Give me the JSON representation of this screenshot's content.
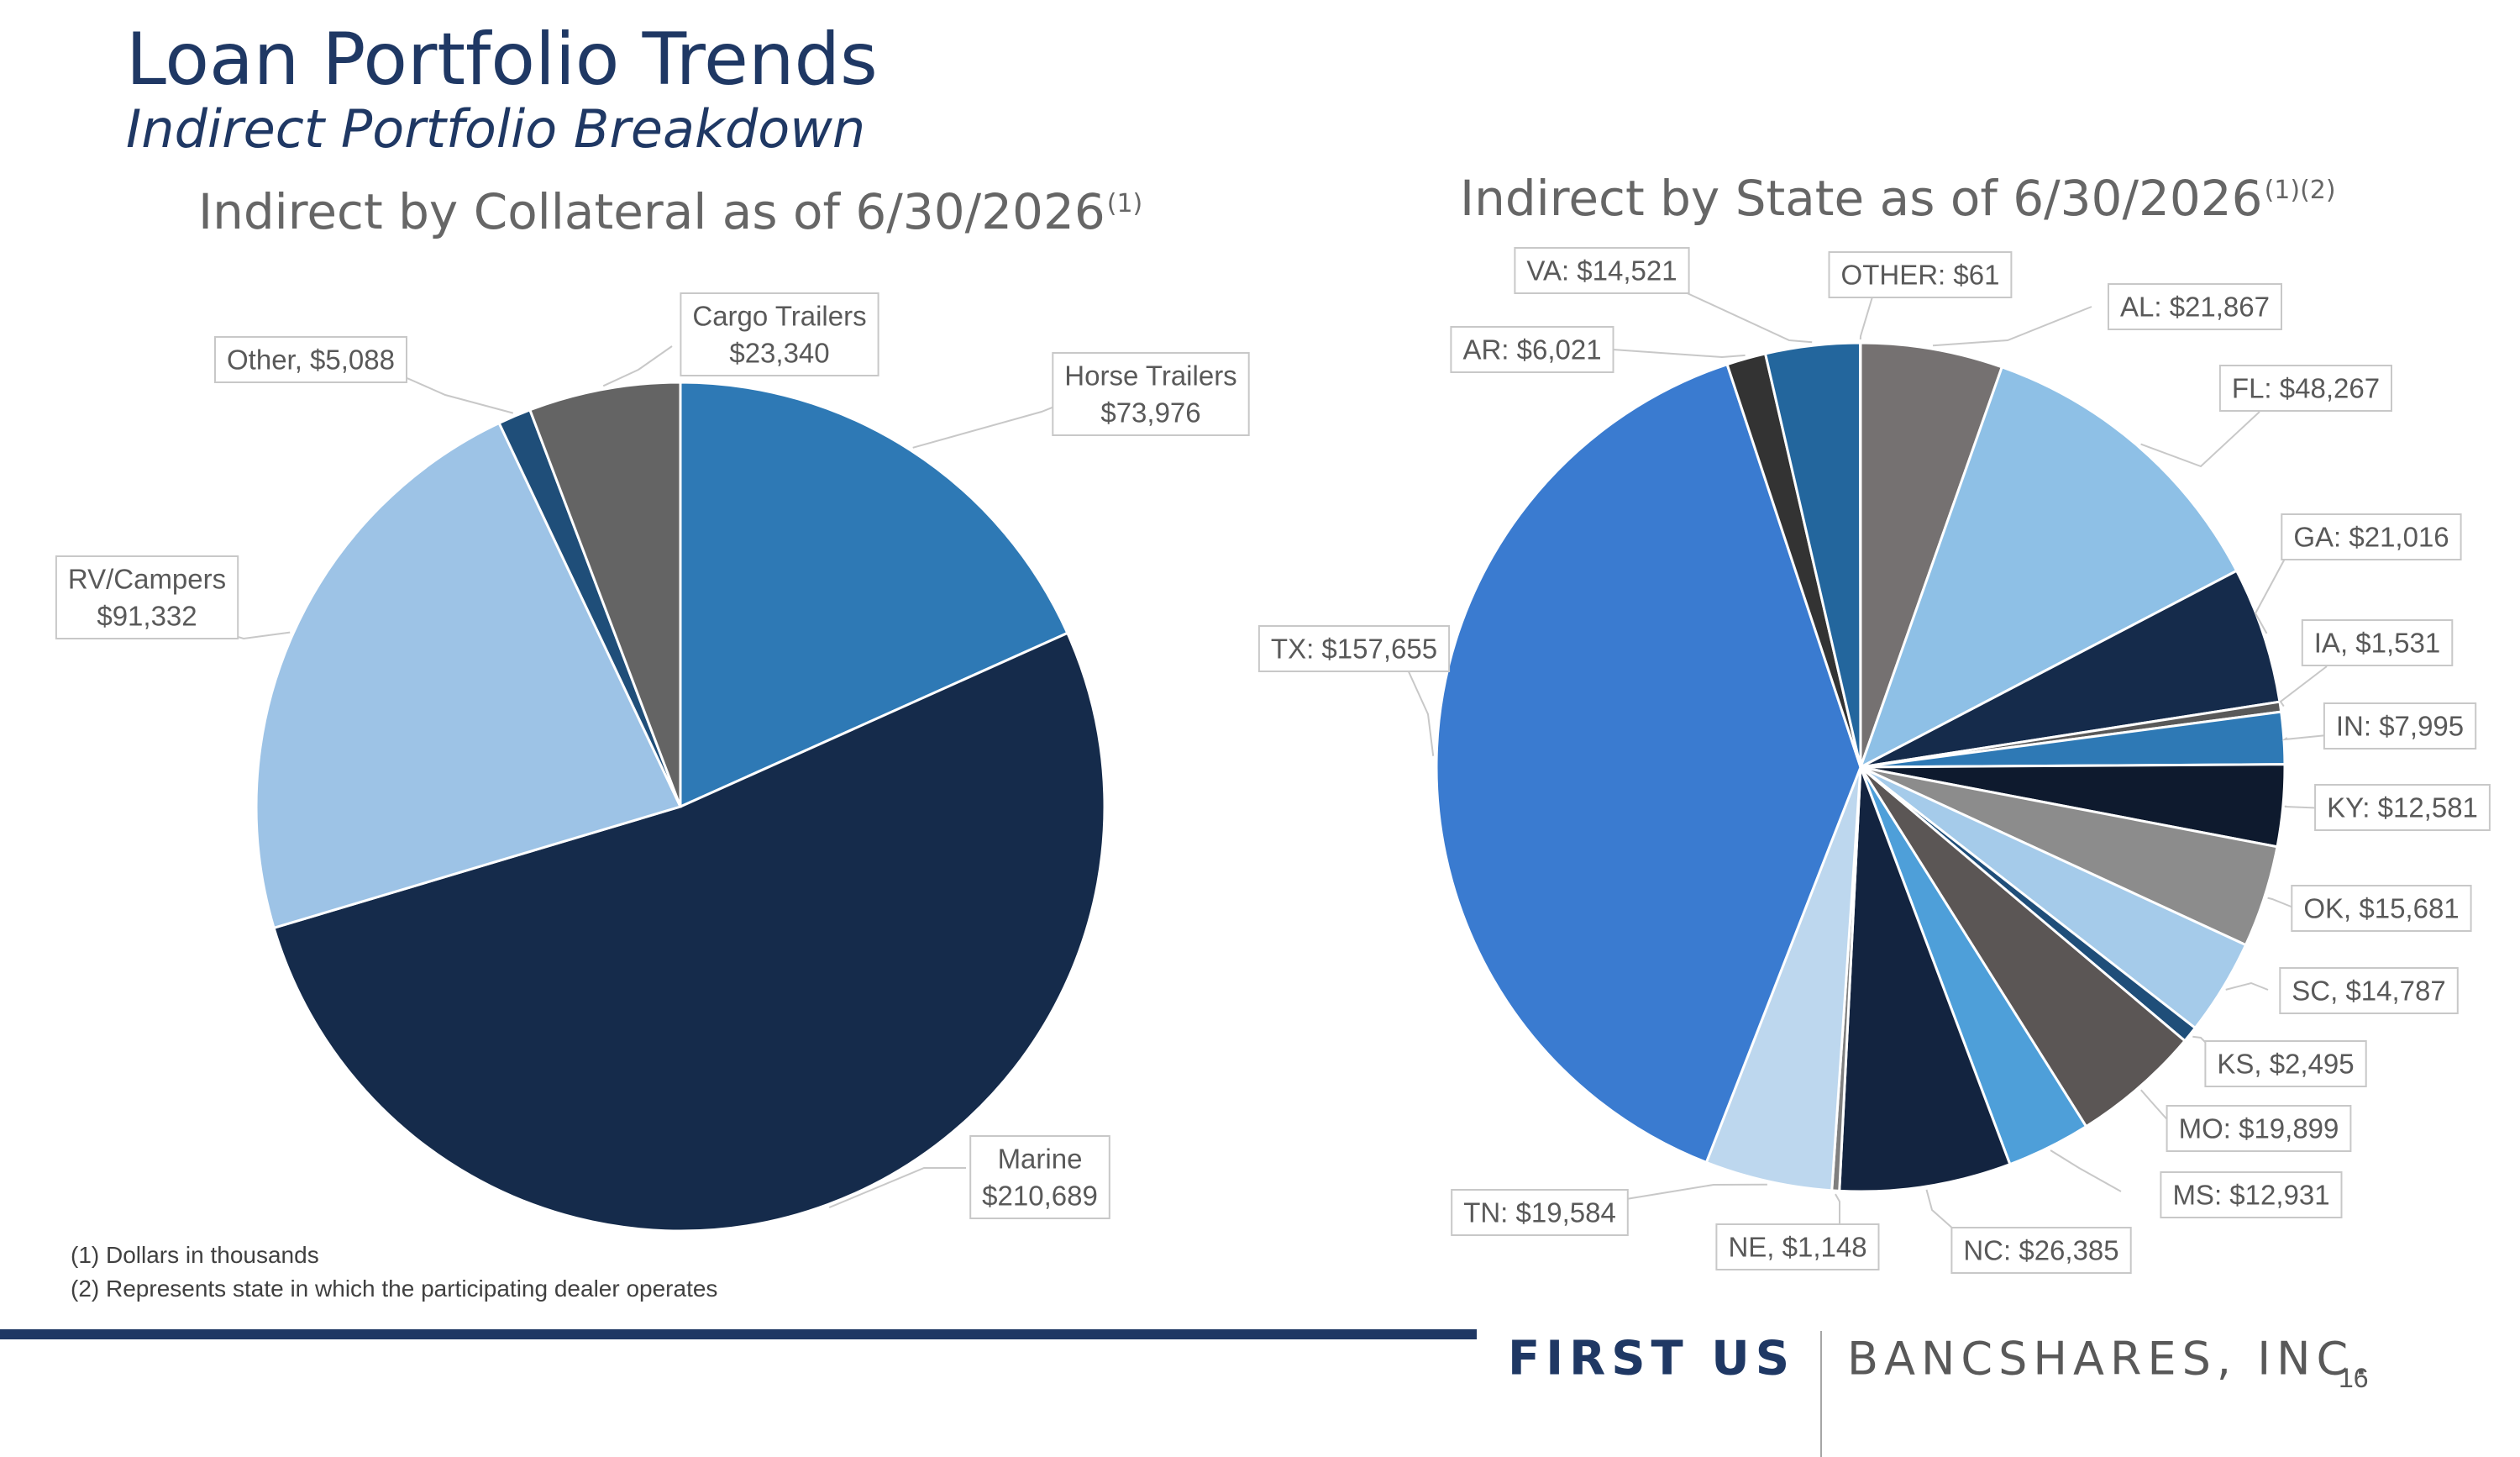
{
  "slide": {
    "title": "Loan Portfolio Trends",
    "subtitle": "Indirect Portfolio Breakdown",
    "page_number": "16"
  },
  "footnotes": [
    "(1) Dollars in thousands",
    "(2) Represents state in which the participating dealer operates"
  ],
  "logo": {
    "first": "FIRST US",
    "rest": "BANCSHARES, INC."
  },
  "chart_data": [
    {
      "type": "pie",
      "title": "Indirect by Collateral as of 6/30/2026",
      "title_superscript": "(1)",
      "categories": [
        "Horse Trailers",
        "Marine",
        "RV/Campers",
        "Other",
        "Cargo Trailers"
      ],
      "values": [
        73976,
        210689,
        91332,
        5088,
        23340
      ],
      "labels": [
        [
          "Horse Trailers",
          "$73,976"
        ],
        [
          "Marine",
          "$210,689"
        ],
        [
          "RV/Campers",
          "$91,332"
        ],
        [
          "Other, $5,088"
        ],
        [
          "Cargo Trailers",
          "$23,340"
        ]
      ],
      "colors": [
        "#2e79b5",
        "#152b4b",
        "#9dc3e6",
        "#1f4e79",
        "#646464"
      ],
      "start_angle": "12 o'clock",
      "direction": "clockwise"
    },
    {
      "type": "pie",
      "title": "Indirect by State as of 6/30/2026",
      "title_superscript": "(1)(2)",
      "categories": [
        "AL",
        "FL",
        "GA",
        "IA",
        "IN",
        "KY",
        "OK",
        "SC",
        "KS",
        "MO",
        "MS",
        "NC",
        "NE",
        "TN",
        "TX",
        "AR",
        "VA",
        "OTHER"
      ],
      "values": [
        21867,
        48267,
        21016,
        1531,
        7995,
        12581,
        15681,
        14787,
        2495,
        19899,
        12931,
        26385,
        1148,
        19584,
        157655,
        6021,
        14521,
        61
      ],
      "labels": [
        "AL: $21,867",
        "FL: $48,267",
        "GA: $21,016",
        "IA, $1,531",
        "IN: $7,995",
        "KY: $12,581",
        "OK, $15,681",
        "SC, $14,787",
        "KS, $2,495",
        "MO: $19,899",
        "MS: $12,931",
        "NC: $26,385",
        "NE, $1,148",
        "TN: $19,584",
        "TX: $157,655",
        "AR: $6,021",
        "VA: $14,521",
        "OTHER: $61"
      ],
      "colors": [
        "#757171",
        "#8ec0e6",
        "#152b4b",
        "#595959",
        "#2e79b5",
        "#0e1a2e",
        "#8c8c8c",
        "#a5cbea",
        "#1f4e79",
        "#5b5655",
        "#4e9fd9",
        "#132440",
        "#7f7f7f",
        "#bdd7ee",
        "#3a7bd0",
        "#333333",
        "#23669d",
        "#a6a6a6"
      ],
      "start_angle": "12 o'clock",
      "direction": "clockwise"
    }
  ]
}
